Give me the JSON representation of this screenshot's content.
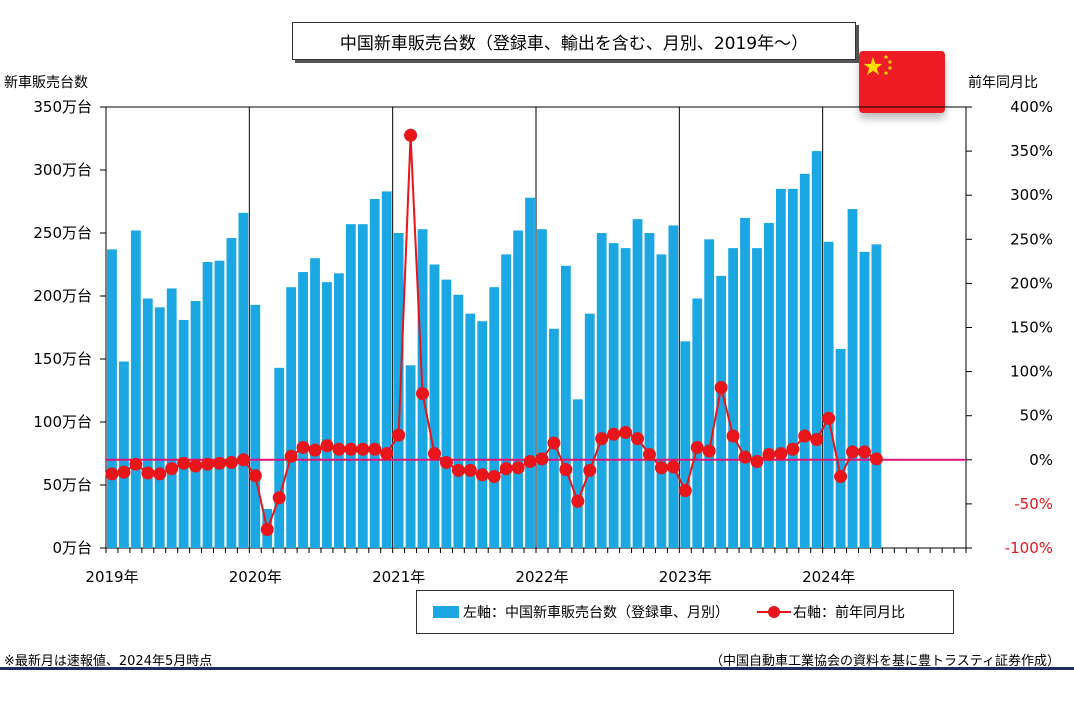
{
  "colors": {
    "bars": "#1aa7e2",
    "line": "#e8151a",
    "zero_line": "#e0127c",
    "flag_red": "#ee1c25",
    "flag_star": "#ffde00",
    "bottom_rule": "#1e2a66"
  },
  "flag_icon": "china-flag-icon",
  "chart_data": {
    "type": "bar",
    "title": "中国新車販売台数（登録車、輸出を含む、月別、2019年～）",
    "ylabel": "新車販売台数",
    "y2label": "前年同月比",
    "ylim": [
      0,
      350
    ],
    "y2lim": [
      -100,
      400
    ],
    "yticks": [
      "0万台",
      "50万台",
      "100万台",
      "150万台",
      "200万台",
      "250万台",
      "300万台",
      "350万台"
    ],
    "y2ticks": [
      "-100%",
      "-50%",
      "0%",
      "50%",
      "100%",
      "150%",
      "200%",
      "250%",
      "300%",
      "350%",
      "400%"
    ],
    "xtick_labels": [
      "2019年",
      "2020年",
      "2021年",
      "2022年",
      "2023年",
      "2024年"
    ],
    "x_slots": 72,
    "categories": [
      "2019-01",
      "2019-02",
      "2019-03",
      "2019-04",
      "2019-05",
      "2019-06",
      "2019-07",
      "2019-08",
      "2019-09",
      "2019-10",
      "2019-11",
      "2019-12",
      "2020-01",
      "2020-02",
      "2020-03",
      "2020-04",
      "2020-05",
      "2020-06",
      "2020-07",
      "2020-08",
      "2020-09",
      "2020-10",
      "2020-11",
      "2020-12",
      "2021-01",
      "2021-02",
      "2021-03",
      "2021-04",
      "2021-05",
      "2021-06",
      "2021-07",
      "2021-08",
      "2021-09",
      "2021-10",
      "2021-11",
      "2021-12",
      "2022-01",
      "2022-02",
      "2022-03",
      "2022-04",
      "2022-05",
      "2022-06",
      "2022-07",
      "2022-08",
      "2022-09",
      "2022-10",
      "2022-11",
      "2022-12",
      "2023-01",
      "2023-02",
      "2023-03",
      "2023-04",
      "2023-05",
      "2023-06",
      "2023-07",
      "2023-08",
      "2023-09",
      "2023-10",
      "2023-11",
      "2023-12",
      "2024-01",
      "2024-02",
      "2024-03",
      "2024-04",
      "2024-05"
    ],
    "series": [
      {
        "name": "左軸：中国新車販売台数（登録車、月別）",
        "type": "bar",
        "axis": "left",
        "values": [
          237,
          148,
          252,
          198,
          191,
          206,
          181,
          196,
          227,
          228,
          246,
          266,
          193,
          31,
          143,
          207,
          219,
          230,
          211,
          218,
          257,
          257,
          277,
          283,
          250,
          145,
          253,
          225,
          213,
          201,
          186,
          180,
          207,
          233,
          252,
          278,
          253,
          174,
          224,
          118,
          186,
          250,
          242,
          238,
          261,
          250,
          233,
          256,
          164,
          198,
          245,
          216,
          238,
          262,
          238,
          258,
          285,
          285,
          297,
          315,
          243,
          158,
          269,
          235,
          241
        ]
      },
      {
        "name": "右軸：前年同月比",
        "type": "line",
        "axis": "right",
        "values": [
          -16,
          -14,
          -5,
          -15,
          -16,
          -10,
          -4,
          -7,
          -5,
          -4,
          -3,
          0,
          -18,
          -79,
          -43,
          4,
          14,
          11,
          16,
          12,
          12,
          12,
          12,
          7,
          28,
          368,
          75,
          7,
          -3,
          -12,
          -12,
          -17,
          -19,
          -10,
          -9,
          -2,
          1,
          19,
          -11,
          -47,
          -12,
          24,
          29,
          31,
          24,
          6,
          -9,
          -8,
          -35,
          14,
          10,
          82,
          27,
          3,
          -2,
          6,
          7,
          12,
          27,
          23,
          47,
          -19,
          9,
          9,
          1
        ]
      }
    ]
  },
  "legend": {
    "bar_label": "左軸：中国新車販売台数（登録車、月別）",
    "line_label": "右軸：前年同月比"
  },
  "footnote_left": "※最新月は速報値、2024年5月時点",
  "footnote_right": "（中国自動車工業協会の資料を基に豊トラスティ証券作成）"
}
